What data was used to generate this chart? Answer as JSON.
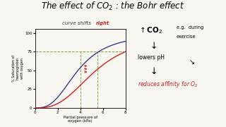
{
  "title": "The effect of CO$_2$ : the Bohr effect",
  "bg_color": "#f8f6f0",
  "plot_bg": "#f8f6f0",
  "blue_curve_color": "#3a3a8c",
  "red_curve_color": "#cc2222",
  "green_line_color": "#7aaa33",
  "xlim": [
    0,
    8
  ],
  "ylim": [
    0,
    105
  ],
  "xticks": [
    0,
    2,
    4,
    6,
    8
  ],
  "ytick_vals": [
    0,
    25,
    50,
    75,
    100
  ],
  "hline_y": 75,
  "vline_x_blue": 4.0,
  "vline_x_red": 5.5,
  "blue_x0": 3.8,
  "blue_n": 2.8,
  "red_x0": 5.4,
  "red_n": 2.8,
  "xlabel": "Partial pressure of\noxygen (kPa)",
  "ylabel": "% Saturation of\nhaemoglobin\nwith oxygen",
  "curve_label_black": "curve shifts ",
  "curve_label_red": "right"
}
